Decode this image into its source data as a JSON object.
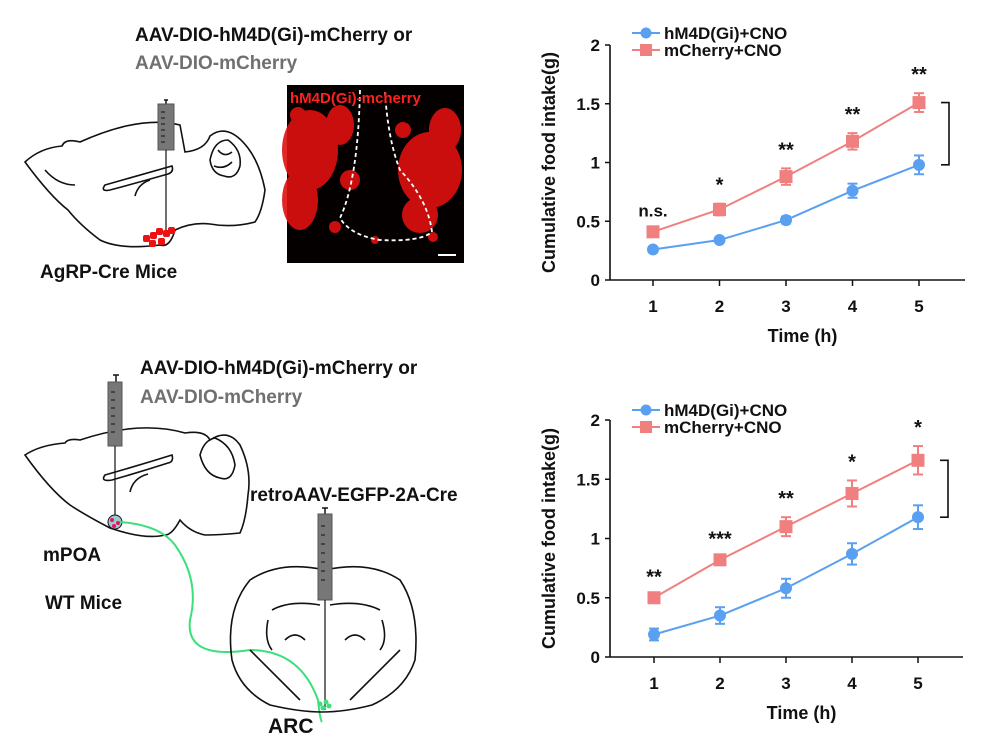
{
  "panels": {
    "top": {
      "virus_line1": "AAV-DIO-hM4D(Gi)-mCherry or",
      "virus_line2": "AAV-DIO-mCherry",
      "mouse_label": "AgRP-Cre Mice",
      "micrograph_label": "hM4D(Gi)-mcherry"
    },
    "bottom": {
      "virus_line1": "AAV-DIO-hM4D(Gi)-mCherry or",
      "virus_line2": "AAV-DIO-mCherry",
      "retro_label": "retroAAV-EGFP-2A-Cre",
      "region1_label": "mPOA",
      "mouse_label": "WT Mice",
      "region2_label": "ARC"
    }
  },
  "colors": {
    "hm4d": "#5aa0f0",
    "mcherry": "#f08080",
    "fiber": "#3be07a",
    "cells": "#ee1111",
    "virus_gray": "#707070"
  },
  "chart_data": [
    {
      "type": "line",
      "title": "",
      "xlabel": "Time (h)",
      "ylabel": "Cumulative food intake(g)",
      "x": [
        1,
        2,
        3,
        4,
        5
      ],
      "xticks": [
        "1",
        "2",
        "3",
        "4",
        "5"
      ],
      "yticks": [
        "0",
        "0.5",
        "1",
        "1.5",
        "2"
      ],
      "ylim": [
        0,
        2
      ],
      "legend_position": "top-left",
      "series": [
        {
          "name": "hM4D(Gi)+CNO",
          "marker": "circle",
          "values": [
            0.26,
            0.34,
            0.51,
            0.76,
            0.98
          ],
          "errors": [
            0.01,
            0.02,
            0.03,
            0.06,
            0.08
          ]
        },
        {
          "name": "mCherry+CNO",
          "marker": "square",
          "values": [
            0.41,
            0.6,
            0.88,
            1.18,
            1.51
          ],
          "errors": [
            0.03,
            0.05,
            0.07,
            0.07,
            0.08
          ]
        }
      ],
      "significance": [
        "n.s.",
        "*",
        "**",
        "**",
        "**"
      ],
      "bracket_label": ""
    },
    {
      "type": "line",
      "title": "",
      "xlabel": "Time (h)",
      "ylabel": "Cumulative food intake(g)",
      "x": [
        1,
        2,
        3,
        4,
        5
      ],
      "xticks": [
        "1",
        "2",
        "3",
        "4",
        "5"
      ],
      "yticks": [
        "0",
        "0.5",
        "1",
        "1.5",
        "2"
      ],
      "ylim": [
        0,
        2
      ],
      "legend_position": "top-left",
      "series": [
        {
          "name": "hM4D(Gi)+CNO",
          "marker": "circle",
          "values": [
            0.19,
            0.35,
            0.58,
            0.87,
            1.18
          ],
          "errors": [
            0.05,
            0.07,
            0.08,
            0.09,
            0.1
          ]
        },
        {
          "name": "mCherry+CNO",
          "marker": "square",
          "values": [
            0.5,
            0.82,
            1.1,
            1.38,
            1.66
          ],
          "errors": [
            0.02,
            0.02,
            0.08,
            0.11,
            0.12
          ]
        }
      ],
      "significance": [
        "**",
        "***",
        "**",
        "*",
        "*"
      ],
      "bracket_label": ""
    }
  ]
}
